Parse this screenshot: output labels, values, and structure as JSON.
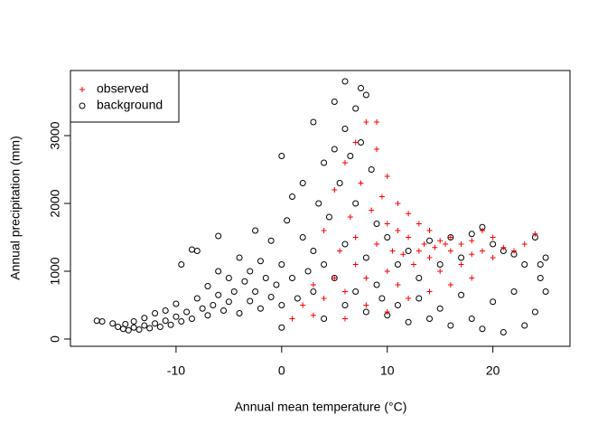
{
  "chart_data": {
    "type": "scatter",
    "x_label": "Annual mean temperature (°C)",
    "y_label": "Annual precipitation (mm)",
    "xlim": [
      -20,
      27.3
    ],
    "ylim": [
      -107,
      3960
    ],
    "xticks": [
      -10,
      0,
      10,
      20
    ],
    "yticks": [
      0,
      1000,
      2000,
      3000
    ],
    "legend": "top-left",
    "series": [
      {
        "name": "observed",
        "color": "red",
        "marker": "plus",
        "x": [
          1,
          2,
          3,
          3,
          4,
          4,
          5,
          5,
          5.5,
          6,
          6,
          6.5,
          7,
          7,
          7.5,
          8,
          8,
          8.5,
          9,
          9,
          9,
          9.5,
          10,
          10,
          10,
          10.5,
          11,
          11,
          11.5,
          12,
          12,
          12.5,
          13,
          13,
          13.5,
          14,
          14,
          14.5,
          15,
          15,
          15.5,
          16,
          16,
          17,
          17,
          18,
          18,
          19,
          19,
          20,
          20,
          21,
          22,
          23,
          24,
          14,
          12,
          8,
          6,
          10,
          16,
          18,
          7,
          11
        ],
        "values": [
          300,
          500,
          350,
          800,
          600,
          1600,
          900,
          2200,
          1300,
          2600,
          700,
          1800,
          2900,
          1100,
          2300,
          3200,
          900,
          1900,
          3200,
          2800,
          1400,
          2100,
          1700,
          2400,
          1000,
          1300,
          2000,
          800,
          1250,
          1500,
          1850,
          1100,
          1300,
          1700,
          1400,
          1200,
          1600,
          1350,
          1450,
          1000,
          1400,
          1300,
          1500,
          1400,
          1100,
          1450,
          1250,
          1600,
          1300,
          1500,
          1200,
          1350,
          1300,
          1400,
          1550,
          700,
          600,
          500,
          300,
          400,
          800,
          900,
          1500,
          1600
        ]
      },
      {
        "name": "background",
        "color": "black",
        "marker": "circle",
        "x": [
          -17.5,
          -17,
          -16,
          -15.5,
          -15,
          -14.8,
          -14.5,
          -14,
          -14,
          -13.5,
          -13,
          -13,
          -12.5,
          -12,
          -12,
          -11.5,
          -11,
          -11,
          -10.5,
          -10,
          -10,
          -9.5,
          -9.5,
          -9,
          -8.5,
          -8.5,
          -8,
          -8,
          -7.5,
          -7,
          -7,
          -6.5,
          -6,
          -6,
          -6,
          -5.5,
          -5,
          -5,
          -4.5,
          -4,
          -4,
          -3.5,
          -3,
          -3,
          -2.5,
          -2.5,
          -2,
          -2,
          -1.5,
          -1,
          -1,
          -0.5,
          0,
          0,
          0,
          0,
          0.5,
          1,
          1,
          1.5,
          2,
          2,
          2.5,
          3,
          3,
          3,
          3.5,
          4,
          4,
          4,
          4.5,
          5,
          5,
          5,
          5.5,
          6,
          6,
          6,
          6,
          6.5,
          7,
          7,
          7,
          7.5,
          7.5,
          8,
          8,
          8,
          8.5,
          9,
          9,
          9.5,
          10,
          10,
          11,
          11,
          12,
          12,
          13,
          13,
          14,
          14,
          15,
          15,
          16,
          16,
          17,
          17,
          18,
          18,
          19,
          19,
          20,
          20,
          21,
          21,
          22,
          22,
          23,
          23,
          24,
          24,
          24.5,
          25,
          25,
          24.5
        ],
        "values": [
          270,
          260,
          230,
          180,
          150,
          220,
          130,
          170,
          260,
          140,
          200,
          310,
          160,
          230,
          380,
          180,
          270,
          420,
          210,
          330,
          520,
          260,
          1100,
          400,
          300,
          1320,
          1300,
          600,
          450,
          350,
          780,
          500,
          1000,
          1520,
          650,
          420,
          900,
          550,
          700,
          1200,
          380,
          850,
          1000,
          560,
          1600,
          700,
          1150,
          450,
          900,
          1450,
          620,
          800,
          2700,
          1100,
          500,
          170,
          1750,
          2100,
          900,
          600,
          1500,
          2300,
          1000,
          3200,
          1300,
          700,
          2000,
          2600,
          1100,
          300,
          1800,
          3500,
          2800,
          900,
          2300,
          3800,
          3100,
          1400,
          500,
          2700,
          3400,
          2000,
          700,
          3700,
          2900,
          3600,
          1200,
          400,
          2500,
          1700,
          800,
          600,
          1500,
          350,
          1100,
          500,
          1300,
          250,
          900,
          600,
          1450,
          300,
          1100,
          450,
          1500,
          200,
          1200,
          650,
          1550,
          300,
          1650,
          150,
          1400,
          550,
          1300,
          100,
          1250,
          700,
          1100,
          200,
          1500,
          400,
          900,
          1200,
          700,
          1100
        ]
      }
    ]
  }
}
